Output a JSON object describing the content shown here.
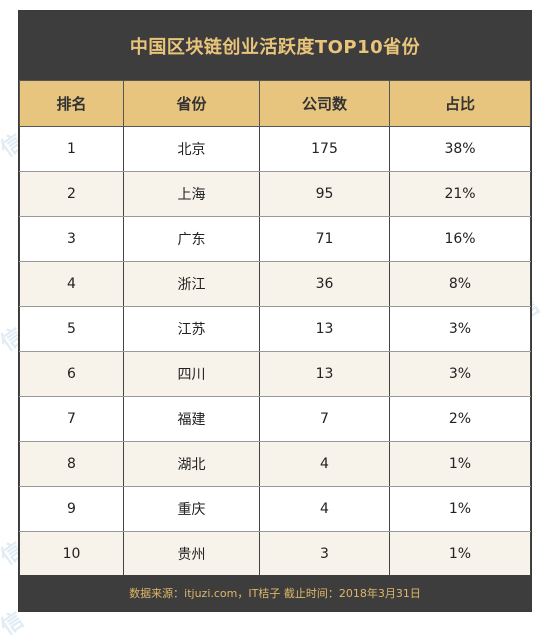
{
  "chart_data": {
    "type": "table",
    "title": "中国区块链创业活跃度TOP10省份",
    "columns": [
      "排名",
      "省份",
      "公司数",
      "占比"
    ],
    "rows": [
      [
        "1",
        "北京",
        "175",
        "38%"
      ],
      [
        "2",
        "上海",
        "95",
        "21%"
      ],
      [
        "3",
        "广东",
        "71",
        "16%"
      ],
      [
        "4",
        "浙江",
        "36",
        "8%"
      ],
      [
        "5",
        "江苏",
        "13",
        "3%"
      ],
      [
        "6",
        "四川",
        "13",
        "3%"
      ],
      [
        "7",
        "福建",
        "7",
        "2%"
      ],
      [
        "8",
        "湖北",
        "4",
        "1%"
      ],
      [
        "9",
        "重庆",
        "4",
        "1%"
      ],
      [
        "10",
        "贵州",
        "3",
        "1%"
      ]
    ],
    "footer": "数据来源：itjuzi.com，IT桔子 截止时间：2018年3月31日"
  },
  "watermarks": [
    {
      "text": "信",
      "color": "#cfe0ee"
    },
    {
      "text": "信",
      "color": "#cfe0ee"
    },
    {
      "text": "信",
      "color": "#cfe0ee"
    },
    {
      "text": "信",
      "color": "#cfe0ee"
    },
    {
      "text": "信",
      "color": "#cfe0ee"
    }
  ],
  "colors": {
    "header_bg": "#3d3d3d",
    "title_text": "#e9c47a",
    "column_header_bg": "#e8c57f",
    "row_alt_bg": "#f7f3eb"
  }
}
